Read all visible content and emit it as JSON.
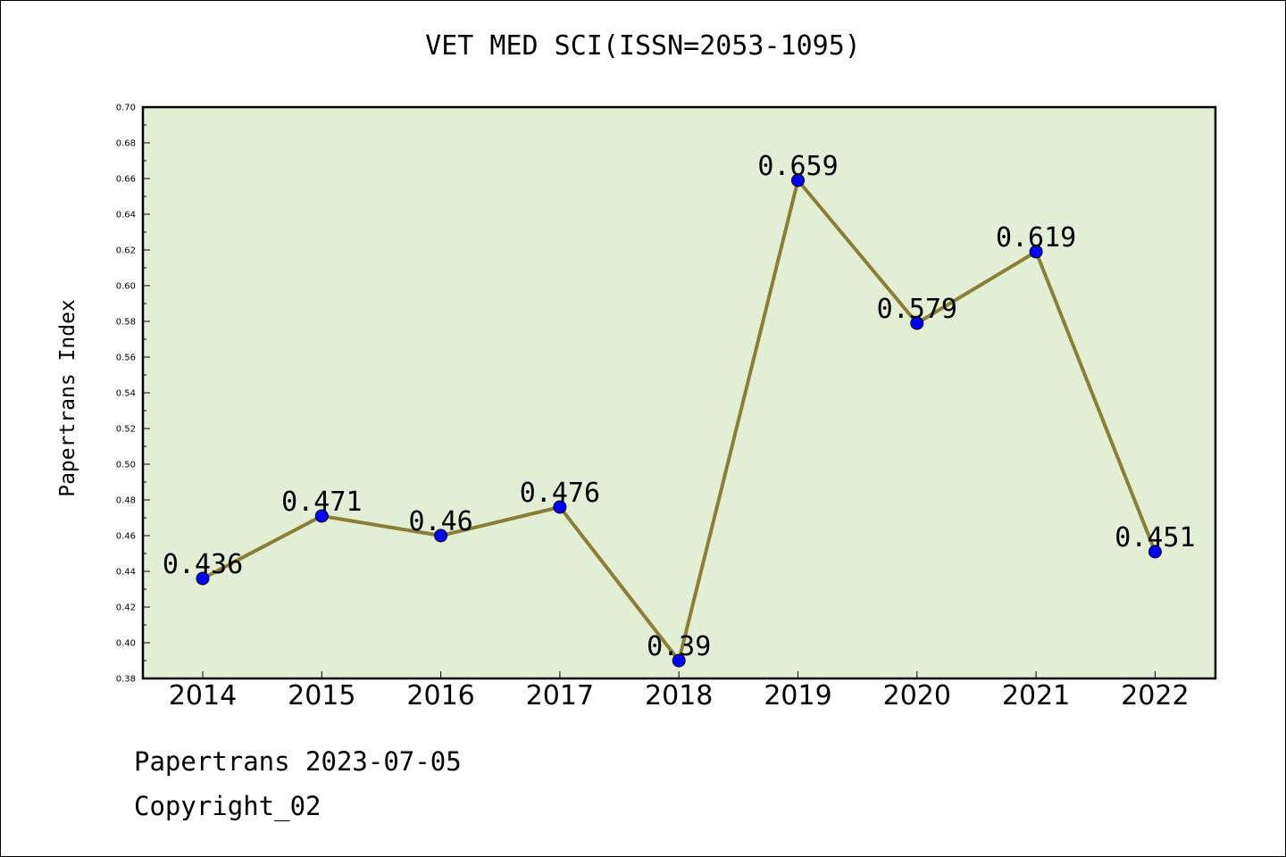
{
  "chart_data": {
    "type": "line",
    "title": "VET MED SCI(ISSN=2053-1095)",
    "xlabel": "",
    "ylabel": "Papertrans Index",
    "categories": [
      "2014",
      "2015",
      "2016",
      "2017",
      "2018",
      "2019",
      "2020",
      "2021",
      "2022"
    ],
    "series": [
      {
        "values": [
          0.436,
          0.471,
          0.46,
          0.476,
          0.39,
          0.659,
          0.579,
          0.619,
          0.451
        ],
        "labels": [
          "0.436",
          "0.471",
          "0.46",
          "0.476",
          "0.39",
          "0.659",
          "0.579",
          "0.619",
          "0.451"
        ]
      }
    ],
    "ylim": [
      0.38,
      0.7
    ],
    "yticks": [
      "0.38",
      "0.40",
      "0.42",
      "0.44",
      "0.46",
      "0.48",
      "0.50",
      "0.52",
      "0.54",
      "0.56",
      "0.58",
      "0.60",
      "0.62",
      "0.64",
      "0.66",
      "0.68",
      "0.70"
    ],
    "grid": false,
    "legend": "none",
    "colors": {
      "plot_background": "#e2efd4",
      "line": "#8b7e38",
      "marker": "#0000ff"
    }
  },
  "footer": {
    "line1": "Papertrans 2023-07-05",
    "line2": "Copyright_02"
  }
}
